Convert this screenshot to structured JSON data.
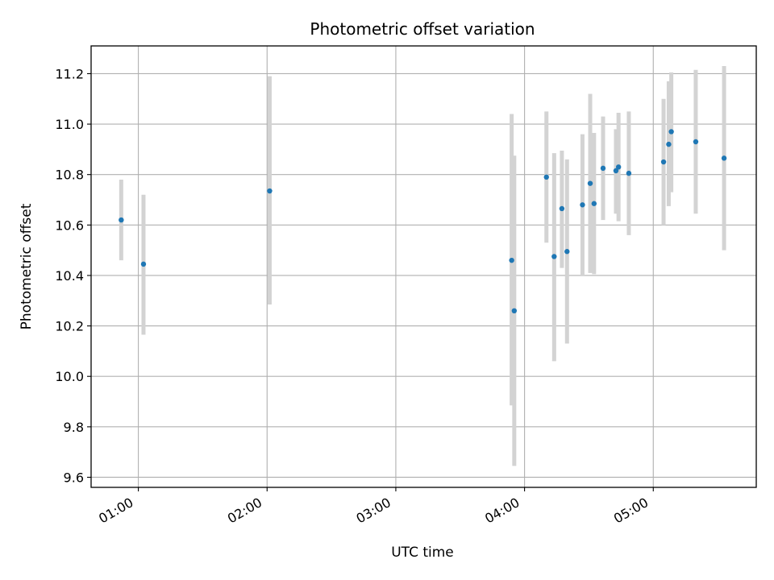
{
  "chart_data": {
    "type": "scatter",
    "title": "Photometric offset variation",
    "xlabel": "UTC time",
    "ylabel": "Photometric offset",
    "x_unit": "hours UTC",
    "xlim": [
      0.633,
      5.8
    ],
    "ylim": [
      9.56,
      11.31
    ],
    "x_ticks": [
      {
        "value": 1,
        "label": "01:00"
      },
      {
        "value": 2,
        "label": "02:00"
      },
      {
        "value": 3,
        "label": "03:00"
      },
      {
        "value": 4,
        "label": "04:00"
      },
      {
        "value": 5,
        "label": "05:00"
      }
    ],
    "y_ticks": [
      {
        "value": 9.6,
        "label": "9.6"
      },
      {
        "value": 9.8,
        "label": "9.8"
      },
      {
        "value": 10.0,
        "label": "10.0"
      },
      {
        "value": 10.2,
        "label": "10.2"
      },
      {
        "value": 10.4,
        "label": "10.4"
      },
      {
        "value": 10.6,
        "label": "10.6"
      },
      {
        "value": 10.8,
        "label": "10.8"
      },
      {
        "value": 11.0,
        "label": "11.0"
      },
      {
        "value": 11.2,
        "label": "11.2"
      }
    ],
    "grid": true,
    "colors": {
      "point": "#1f77b4",
      "errorbar": "#d3d3d3",
      "grid": "#b0b0b0"
    },
    "series": [
      {
        "points": [
          {
            "x": 0.867,
            "y": 10.62,
            "low": 10.46,
            "high": 10.78
          },
          {
            "x": 1.04,
            "y": 10.445,
            "low": 10.165,
            "high": 10.72
          },
          {
            "x": 2.02,
            "y": 10.735,
            "low": 10.285,
            "high": 11.19
          },
          {
            "x": 3.9,
            "y": 10.46,
            "low": 9.885,
            "high": 11.04
          },
          {
            "x": 3.92,
            "y": 10.26,
            "low": 9.645,
            "high": 10.875
          },
          {
            "x": 4.17,
            "y": 10.79,
            "low": 10.53,
            "high": 11.05
          },
          {
            "x": 4.23,
            "y": 10.475,
            "low": 10.06,
            "high": 10.885
          },
          {
            "x": 4.29,
            "y": 10.665,
            "low": 10.43,
            "high": 10.895
          },
          {
            "x": 4.33,
            "y": 10.495,
            "low": 10.13,
            "high": 10.86
          },
          {
            "x": 4.45,
            "y": 10.68,
            "low": 10.4,
            "high": 10.96
          },
          {
            "x": 4.51,
            "y": 10.765,
            "low": 10.41,
            "high": 11.12
          },
          {
            "x": 4.54,
            "y": 10.685,
            "low": 10.405,
            "high": 10.965
          },
          {
            "x": 4.61,
            "y": 10.825,
            "low": 10.62,
            "high": 11.03
          },
          {
            "x": 4.71,
            "y": 10.815,
            "low": 10.645,
            "high": 10.98
          },
          {
            "x": 4.73,
            "y": 10.83,
            "low": 10.615,
            "high": 11.045
          },
          {
            "x": 4.81,
            "y": 10.805,
            "low": 10.56,
            "high": 11.05
          },
          {
            "x": 5.08,
            "y": 10.85,
            "low": 10.6,
            "high": 11.1
          },
          {
            "x": 5.12,
            "y": 10.92,
            "low": 10.675,
            "high": 11.17
          },
          {
            "x": 5.14,
            "y": 10.97,
            "low": 10.73,
            "high": 11.205
          },
          {
            "x": 5.33,
            "y": 10.93,
            "low": 10.645,
            "high": 11.215
          },
          {
            "x": 5.55,
            "y": 10.865,
            "low": 10.5,
            "high": 11.23
          }
        ]
      }
    ]
  }
}
